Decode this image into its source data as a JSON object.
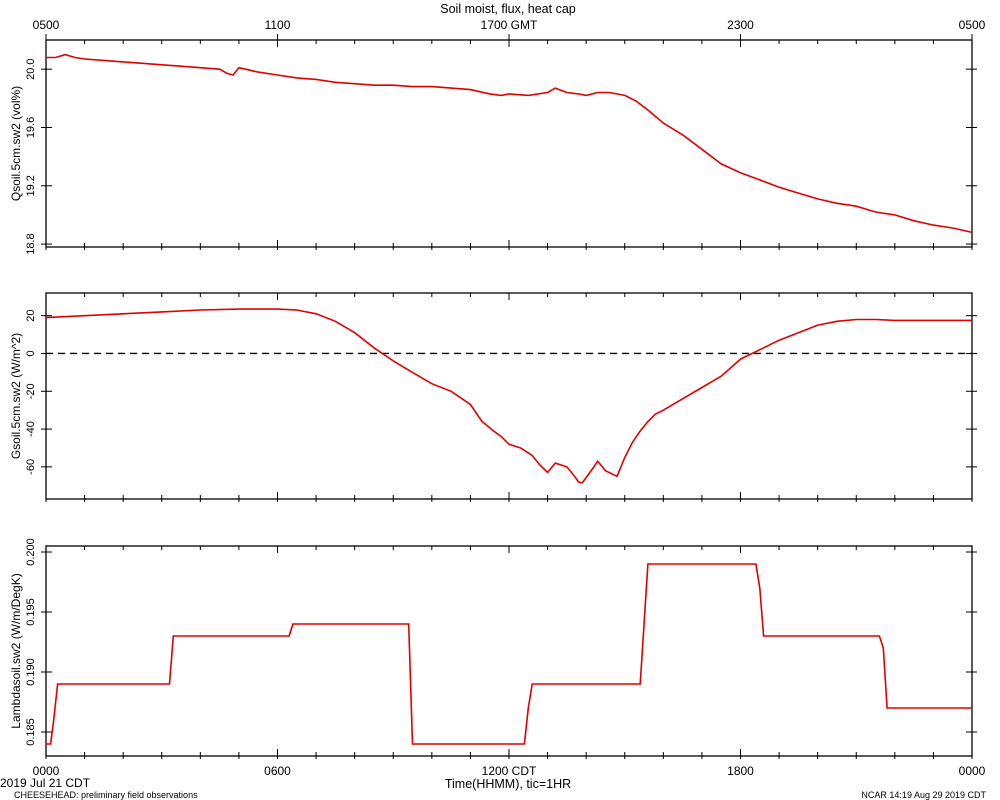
{
  "header": {
    "title": "Soil moist, flux, heat cap"
  },
  "footer": {
    "start_date": "2019 Jul 21 CDT",
    "project": "CHEESEHEAD: preliminary field observations",
    "stamp": "NCAR 14:19 Aug 29 2019 CDT"
  },
  "axes": {
    "x_bottom_label": "Time(HHMM), tic=1HR",
    "x_bottom_ticks": [
      "0000",
      "0600",
      "1200 CDT",
      "1800",
      "0000"
    ],
    "x_top_ticks": [
      "0500",
      "1100",
      "1700 GMT",
      "2300",
      "0500"
    ]
  },
  "colors": {
    "series": "#e00000",
    "axes": "#000000"
  },
  "chart_data": [
    {
      "type": "line",
      "ylabel": "Qsoil.5cm.sw2 (vol%)",
      "ylim": [
        18.78,
        20.2
      ],
      "yticks": [
        18.8,
        19.2,
        19.6,
        20.0
      ],
      "ytick_labels": [
        "18.8",
        "19.2",
        "19.6",
        "20.0"
      ],
      "xlim": [
        0,
        24
      ],
      "x_units": "hours CDT",
      "series": [
        {
          "x": [
            0,
            0.25,
            0.5,
            0.75,
            1,
            1.5,
            2,
            2.5,
            3,
            3.5,
            4,
            4.5,
            4.7,
            4.85,
            5,
            5.5,
            6,
            6.5,
            7,
            7.5,
            8,
            8.5,
            9,
            9.5,
            10,
            10.5,
            11,
            11.5,
            11.8,
            12,
            12.5,
            13,
            13.2,
            13.3,
            13.5,
            13.8,
            14,
            14.3,
            14.6,
            15,
            15.3,
            15.6,
            16,
            16.5,
            17,
            17.5,
            18,
            18.5,
            19,
            19.5,
            20,
            20.5,
            21,
            21.5,
            22,
            22.5,
            23,
            23.5,
            24
          ],
          "y": [
            20.08,
            20.08,
            20.1,
            20.08,
            20.07,
            20.06,
            20.05,
            20.04,
            20.03,
            20.02,
            20.01,
            20.0,
            19.97,
            19.96,
            20.01,
            19.98,
            19.96,
            19.94,
            19.93,
            19.91,
            19.9,
            19.89,
            19.89,
            19.88,
            19.88,
            19.87,
            19.86,
            19.83,
            19.82,
            19.83,
            19.82,
            19.84,
            19.87,
            19.86,
            19.84,
            19.83,
            19.82,
            19.84,
            19.84,
            19.82,
            19.78,
            19.72,
            19.63,
            19.55,
            19.45,
            19.35,
            19.29,
            19.24,
            19.19,
            19.15,
            19.11,
            19.08,
            19.06,
            19.02,
            19.0,
            18.96,
            18.93,
            18.91,
            18.88
          ]
        }
      ]
    },
    {
      "type": "line",
      "ylabel": "Gsoil.5cm.sw2 (W/m^2)",
      "ylim": [
        -77,
        32
      ],
      "yticks": [
        -60,
        -40,
        -20,
        0,
        20
      ],
      "ytick_labels": [
        "-60",
        "-40",
        "-20",
        "0",
        "20"
      ],
      "zero_line": true,
      "xlim": [
        0,
        24
      ],
      "x_units": "hours CDT",
      "series": [
        {
          "x": [
            0,
            1,
            2,
            3,
            4,
            5,
            6,
            6.5,
            7,
            7.5,
            8,
            8.5,
            9,
            9.5,
            10,
            10.5,
            11,
            11.3,
            11.6,
            11.8,
            12,
            12.3,
            12.6,
            12.8,
            13,
            13.2,
            13.5,
            13.7,
            13.8,
            13.9,
            14.2,
            14.3,
            14.5,
            14.8,
            15,
            15.2,
            15.4,
            15.6,
            15.8,
            16,
            16.5,
            17,
            17.5,
            18,
            18.5,
            19,
            19.5,
            20,
            20.5,
            21,
            21.5,
            22,
            22.5,
            23,
            23.5,
            24
          ],
          "y": [
            19,
            20,
            21,
            22,
            23,
            23.5,
            23.5,
            23,
            21,
            17,
            11,
            3,
            -4,
            -10,
            -16,
            -20,
            -27,
            -36,
            -41,
            -44,
            -48,
            -50,
            -54,
            -59,
            -63,
            -58,
            -60,
            -65,
            -68,
            -68.5,
            -60,
            -57,
            -62,
            -65,
            -55,
            -47,
            -41,
            -36,
            -32,
            -30,
            -24,
            -18,
            -12,
            -3,
            2,
            7,
            11,
            15,
            17,
            18,
            18,
            17.5,
            17.5,
            17.5,
            17.5,
            17.5
          ]
        }
      ]
    },
    {
      "type": "line",
      "ylabel": "Lambdasoil.sw2 (W/m/DegK)",
      "ylim": [
        0.183,
        0.2005
      ],
      "yticks": [
        0.185,
        0.19,
        0.195,
        0.2
      ],
      "ytick_labels": [
        "0.185",
        "0.190",
        "0.195",
        "0.200"
      ],
      "xlim": [
        0,
        24
      ],
      "x_units": "hours CDT",
      "series": [
        {
          "x": [
            0,
            0.12,
            0.2,
            0.3,
            3.1,
            3.2,
            3.3,
            6.3,
            6.4,
            9.4,
            9.5,
            12.4,
            12.5,
            12.6,
            15.4,
            15.6,
            18.4,
            18.5,
            18.6,
            21.6,
            21.7,
            21.8,
            24
          ],
          "y": [
            0.184,
            0.184,
            0.186,
            0.189,
            0.189,
            0.189,
            0.193,
            0.193,
            0.194,
            0.194,
            0.184,
            0.184,
            0.187,
            0.189,
            0.189,
            0.199,
            0.199,
            0.197,
            0.193,
            0.193,
            0.192,
            0.187,
            0.187
          ]
        }
      ]
    }
  ]
}
